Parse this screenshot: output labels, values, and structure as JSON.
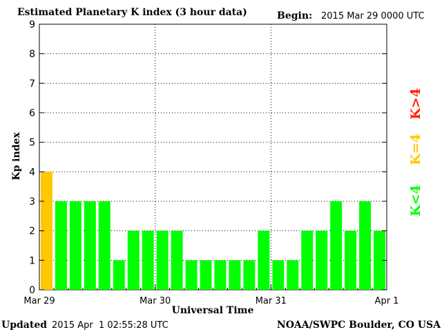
{
  "header": {
    "title": "Estimated Planetary K index (3 hour data)",
    "begin_label": "Begin:",
    "begin_value": "2015 Mar 29 0000 UTC"
  },
  "footer": {
    "updated_label": "Updated",
    "updated_value": "2015 Apr  1 02:55:28 UTC",
    "credit": "NOAA/SWPC Boulder, CO USA"
  },
  "legend": {
    "high": "K>4",
    "mid": "K=4",
    "low": "K<4",
    "colors": {
      "high": "#ff2000",
      "mid": "#ffc800",
      "low": "#00ff00"
    }
  },
  "chart_data": {
    "type": "bar",
    "title": "Estimated Planetary K index (3 hour data)",
    "xlabel": "Universal Time",
    "ylabel": "Kp index",
    "ylim": [
      0,
      9
    ],
    "yticks": [
      "0",
      "1",
      "2",
      "3",
      "4",
      "5",
      "6",
      "7",
      "8",
      "9"
    ],
    "xticks": [
      "Mar 29",
      "Mar 30",
      "Mar 31",
      "Apr 1"
    ],
    "grid": true,
    "values": [
      4,
      3,
      3,
      3,
      3,
      1,
      2,
      2,
      2,
      2,
      1,
      1,
      1,
      1,
      1,
      2,
      1,
      1,
      2,
      2,
      3,
      2,
      3,
      2
    ]
  }
}
